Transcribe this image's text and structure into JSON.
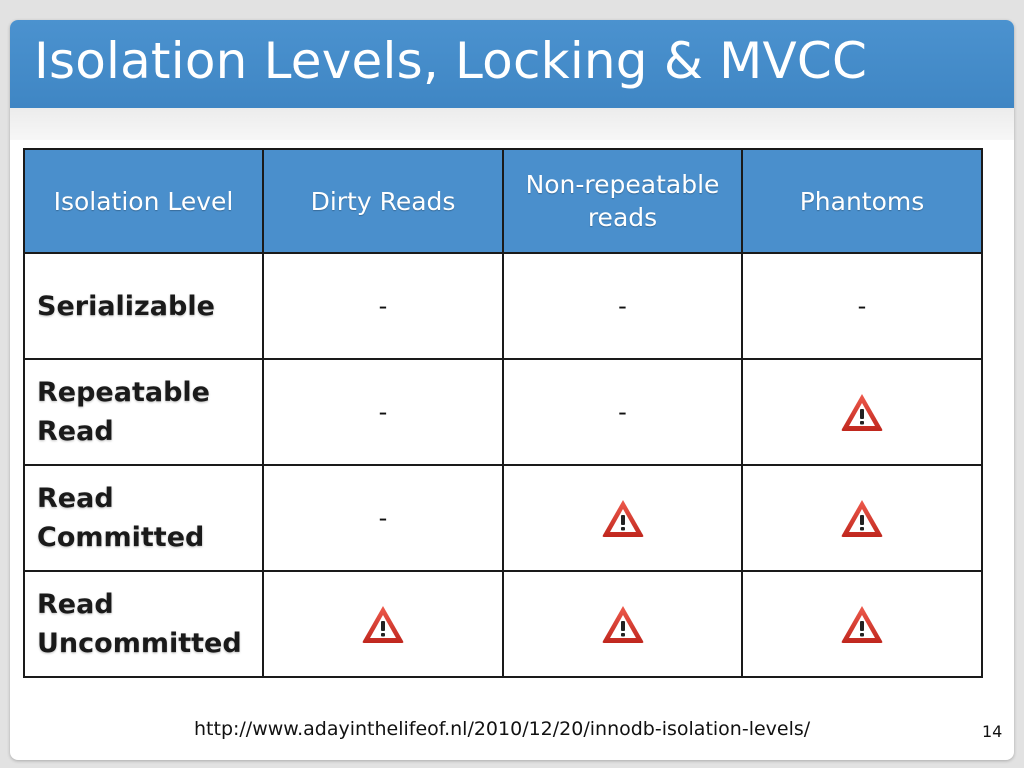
{
  "slide": {
    "title": "Isolation Levels, Locking & MVCC",
    "footer_url": "http://www.adayinthelifeof.nl/2010/12/20/innodb-isolation-levels/",
    "page_number": "14"
  },
  "table": {
    "headers": [
      "Isolation Level",
      "Dirty Reads",
      "Non-repeatable reads",
      "Phantoms"
    ],
    "rows": [
      {
        "level": "Serializable",
        "cells": [
          "-",
          "-",
          "-"
        ]
      },
      {
        "level": "Repeatable Read",
        "cells": [
          "-",
          "-",
          "warning-icon"
        ]
      },
      {
        "level": "Read Committed",
        "cells": [
          "-",
          "warning-icon",
          "warning-icon"
        ]
      },
      {
        "level": "Read Uncommitted",
        "cells": [
          "warning-icon",
          "warning-icon",
          "warning-icon"
        ]
      }
    ]
  },
  "colors": {
    "accent_blue": "#4a8fcc",
    "warning_red": "#d9342b",
    "border": "#1a1a1a"
  }
}
